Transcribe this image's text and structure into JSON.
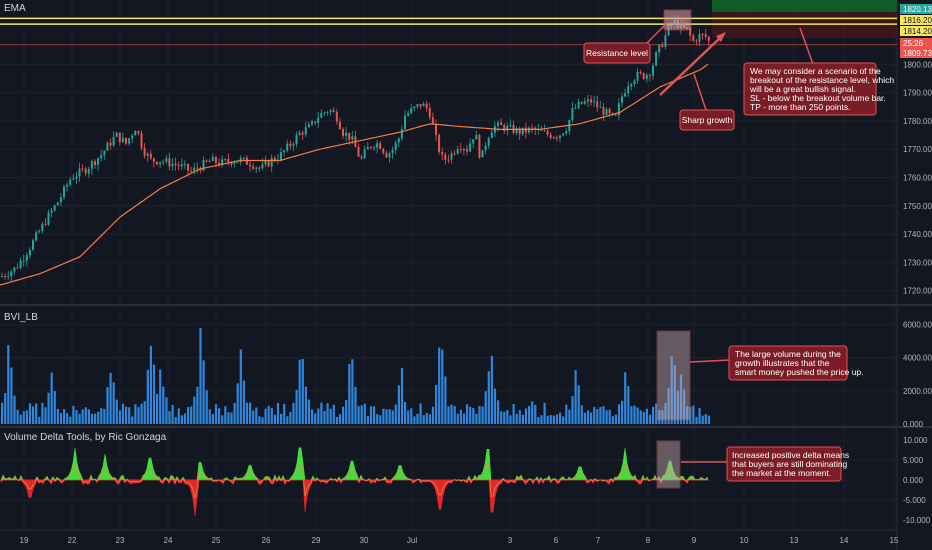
{
  "panels": {
    "price": {
      "label": "EMA"
    },
    "volume": {
      "label": "BVI_LB"
    },
    "delta": {
      "label": "Volume Delta Tools, by Ric Gonzaga"
    }
  },
  "price_axis": {
    "ticks": [
      "1800.000",
      "1790.000",
      "1780.000",
      "1770.000",
      "1760.000",
      "1750.000",
      "1740.000",
      "1730.000",
      "1720.000"
    ],
    "badges": [
      {
        "text": "1820.138",
        "bg": "#26a69a",
        "fg": "#ffffff",
        "value": 1820.138
      },
      {
        "text": "1816.200",
        "bg": "#f5e663",
        "fg": "#131722",
        "value": 1816.2
      },
      {
        "text": "1814.200",
        "bg": "#f5e663",
        "fg": "#131722",
        "value": 1814.2
      },
      {
        "text": "25:26",
        "bg": "#ef5350",
        "fg": "#ffffff",
        "value": 1809.7
      },
      {
        "text": "1809.736",
        "bg": "#ef5350",
        "fg": "#ffffff",
        "value": 1806.9
      }
    ]
  },
  "volume_axis": {
    "ticks": [
      "6000.000",
      "4000.000",
      "2000.000",
      "0.000"
    ]
  },
  "delta_axis": {
    "ticks": [
      "10.000",
      "5.000",
      "0.000",
      "-5.000",
      "-10.000"
    ]
  },
  "time_axis": {
    "ticks": [
      "19",
      "22",
      "23",
      "24",
      "25",
      "26",
      "29",
      "30",
      "Jul",
      "3",
      "6",
      "7",
      "8",
      "9",
      "10",
      "13",
      "14",
      "15"
    ]
  },
  "annotations": {
    "resistance": "Resistance level",
    "sharp_growth": "Sharp growth",
    "scenario": [
      "We may consider a scenario of the",
      "breakout of the resistance level, which",
      "will be a great bullish signal.",
      "SL - below the breakout volume bar.",
      "TP - more than 250 points."
    ],
    "volume_note": [
      "The large volume during the",
      "growth illustrates that the",
      "smart money pushed the price up."
    ],
    "delta_note": [
      "Increased positive delta means",
      "that buyers are still dominating",
      "the market at the moment."
    ]
  },
  "colors": {
    "up": "#26a69a",
    "down": "#ef5350",
    "ema": "#f57c45",
    "volume": "#2f86dd",
    "delta_pos": "#3ee03e",
    "delta_neg": "#e02828",
    "resistance_line": "#f5e663",
    "note_bg": "#7b1d26",
    "note_border": "#e0535a"
  },
  "chart_data": {
    "type": "candlestick",
    "x_labels": [
      "19",
      "22",
      "23",
      "24",
      "25",
      "26",
      "29",
      "30",
      "Jul",
      "3",
      "6",
      "7",
      "8",
      "9",
      "10",
      "13",
      "14",
      "15"
    ],
    "price_ylim": [
      1716,
      1822
    ],
    "price_path": [
      [
        0,
        1725
      ],
      [
        15,
        1728
      ],
      [
        30,
        1736
      ],
      [
        45,
        1745
      ],
      [
        58,
        1752
      ],
      [
        70,
        1760
      ],
      [
        85,
        1763
      ],
      [
        100,
        1768
      ],
      [
        115,
        1775
      ],
      [
        125,
        1772
      ],
      [
        135,
        1778
      ],
      [
        142,
        1770
      ],
      [
        150,
        1766
      ],
      [
        160,
        1766
      ],
      [
        170,
        1765
      ],
      [
        180,
        1764
      ],
      [
        190,
        1762
      ],
      [
        200,
        1764
      ],
      [
        210,
        1766
      ],
      [
        220,
        1765
      ],
      [
        230,
        1766
      ],
      [
        240,
        1766
      ],
      [
        250,
        1765
      ],
      [
        260,
        1763
      ],
      [
        270,
        1766
      ],
      [
        280,
        1768
      ],
      [
        290,
        1772
      ],
      [
        300,
        1776
      ],
      [
        310,
        1778
      ],
      [
        318,
        1782
      ],
      [
        328,
        1784
      ],
      [
        335,
        1782
      ],
      [
        342,
        1776
      ],
      [
        350,
        1774
      ],
      [
        355,
        1770
      ],
      [
        360,
        1766
      ],
      [
        366,
        1770
      ],
      [
        372,
        1772
      ],
      [
        378,
        1772
      ],
      [
        386,
        1768
      ],
      [
        392,
        1770
      ],
      [
        398,
        1774
      ],
      [
        404,
        1782
      ],
      [
        412,
        1784
      ],
      [
        420,
        1786
      ],
      [
        428,
        1784
      ],
      [
        436,
        1772
      ],
      [
        442,
        1766
      ],
      [
        450,
        1768
      ],
      [
        458,
        1772
      ],
      [
        466,
        1770
      ],
      [
        474,
        1776
      ],
      [
        480,
        1766
      ],
      [
        486,
        1774
      ],
      [
        492,
        1778
      ],
      [
        500,
        1778
      ],
      [
        510,
        1777
      ],
      [
        520,
        1776
      ],
      [
        530,
        1777
      ],
      [
        540,
        1776
      ],
      [
        550,
        1775
      ],
      [
        558,
        1775
      ],
      [
        566,
        1778
      ],
      [
        572,
        1784
      ],
      [
        580,
        1786
      ],
      [
        590,
        1787
      ],
      [
        600,
        1784
      ],
      [
        608,
        1782
      ],
      [
        614,
        1780
      ],
      [
        620,
        1788
      ],
      [
        628,
        1794
      ],
      [
        636,
        1796
      ],
      [
        644,
        1796
      ],
      [
        650,
        1798
      ],
      [
        656,
        1804
      ],
      [
        662,
        1808
      ],
      [
        668,
        1813
      ],
      [
        674,
        1815
      ],
      [
        680,
        1813
      ],
      [
        686,
        1812
      ],
      [
        692,
        1808
      ],
      [
        698,
        1810
      ],
      [
        704,
        1810
      ],
      [
        708,
        1808
      ]
    ],
    "ema_path": [
      [
        0,
        1722
      ],
      [
        40,
        1726
      ],
      [
        80,
        1732
      ],
      [
        120,
        1746
      ],
      [
        160,
        1756
      ],
      [
        200,
        1763
      ],
      [
        240,
        1766
      ],
      [
        280,
        1766
      ],
      [
        320,
        1770
      ],
      [
        360,
        1773
      ],
      [
        400,
        1776
      ],
      [
        430,
        1779
      ],
      [
        460,
        1778
      ],
      [
        500,
        1777
      ],
      [
        540,
        1777
      ],
      [
        580,
        1779
      ],
      [
        620,
        1783
      ],
      [
        660,
        1792
      ],
      [
        700,
        1798
      ],
      [
        708,
        1800
      ]
    ],
    "resistance_levels": [
      1816.2,
      1814.2
    ],
    "volume_ylim": [
      0,
      7000
    ],
    "volume_spikes": [
      [
        8,
        5200
      ],
      [
        50,
        4100
      ],
      [
        110,
        4200
      ],
      [
        150,
        6000
      ],
      [
        160,
        4300
      ],
      [
        200,
        6100
      ],
      [
        240,
        4500
      ],
      [
        300,
        6700
      ],
      [
        350,
        5100
      ],
      [
        400,
        3800
      ],
      [
        440,
        6200
      ],
      [
        490,
        5700
      ],
      [
        530,
        2100
      ],
      [
        575,
        3600
      ],
      [
        625,
        3800
      ],
      [
        672,
        5300
      ],
      [
        680,
        3900
      ]
    ],
    "delta_ylim": [
      -12,
      12
    ],
    "delta_spikes": [
      [
        30,
        -6
      ],
      [
        75,
        8
      ],
      [
        105,
        6.5
      ],
      [
        150,
        7.5
      ],
      [
        195,
        -9
      ],
      [
        200,
        6
      ],
      [
        250,
        5
      ],
      [
        300,
        11
      ],
      [
        305,
        -8
      ],
      [
        352,
        6.5
      ],
      [
        400,
        5
      ],
      [
        440,
        -10
      ],
      [
        488,
        10.5
      ],
      [
        492,
        -11
      ],
      [
        580,
        4.5
      ],
      [
        625,
        8
      ],
      [
        670,
        6.5
      ]
    ]
  }
}
